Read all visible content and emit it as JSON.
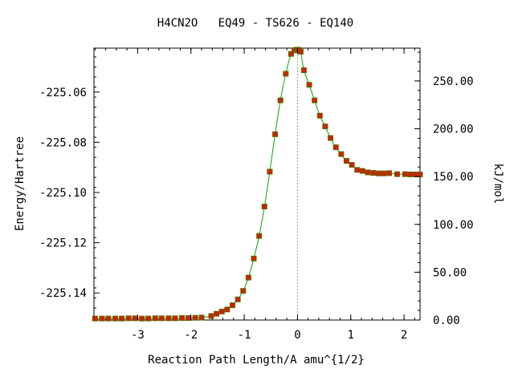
{
  "chart_data": {
    "type": "line",
    "title": "H4CN2O   EQ49 - TS626 - EQ140",
    "xlabel": "Reaction Path Length/A amu^{1/2}",
    "ylabel": "Energy/Hartree",
    "y2label": "kJ/mol",
    "xlim": [
      -3.82,
      2.3
    ],
    "ylim": [
      -225.1508,
      -225.0425
    ],
    "y2lim": [
      0,
      284.3
    ],
    "grid": false,
    "legend": "none",
    "x_ticks": [
      {
        "value": -3,
        "label": "-3"
      },
      {
        "value": -2,
        "label": "-2"
      },
      {
        "value": -1,
        "label": "-1"
      },
      {
        "value": 0,
        "label": "0"
      },
      {
        "value": 1,
        "label": "1"
      },
      {
        "value": 2,
        "label": "2"
      }
    ],
    "y_ticks": [
      {
        "value": -225.06,
        "label": "-225.06"
      },
      {
        "value": -225.08,
        "label": "-225.08"
      },
      {
        "value": -225.1,
        "label": "-225.10"
      },
      {
        "value": -225.12,
        "label": "-225.12"
      },
      {
        "value": -225.14,
        "label": "-225.14"
      }
    ],
    "y2_ticks": [
      {
        "value": 0,
        "label": "0.00"
      },
      {
        "value": 50,
        "label": "50.00"
      },
      {
        "value": 100,
        "label": "100.00"
      },
      {
        "value": 150,
        "label": "150.00"
      },
      {
        "value": 200,
        "label": "200.00"
      },
      {
        "value": 250,
        "label": "250.00"
      }
    ],
    "ts_marker_x": 0.0,
    "colors": {
      "curve": "#00aa00",
      "marker_fill": "#cc2200",
      "marker_edge": "#666600",
      "ts_line": "#999999",
      "axes": "#000000"
    },
    "series": [
      {
        "x": [
          -3.8,
          -3.67,
          -3.55,
          -3.42,
          -3.3,
          -3.17,
          -3.05,
          -2.92,
          -2.8,
          -2.67,
          -2.55,
          -2.42,
          -2.3,
          -2.17,
          -2.05,
          -1.92,
          -1.8,
          -1.62,
          -1.52,
          -1.42,
          -1.32,
          -1.22,
          -1.12,
          -1.02,
          -0.92,
          -0.82,
          -0.72,
          -0.62,
          -0.52,
          -0.42,
          -0.32,
          -0.22,
          -0.12,
          -0.06,
          -0.03,
          0.0,
          0.03,
          0.06,
          0.12,
          0.22,
          0.32,
          0.42,
          0.52,
          0.62,
          0.72,
          0.82,
          0.92,
          1.02,
          1.12,
          1.22,
          1.32,
          1.42,
          1.52,
          1.62,
          1.72,
          1.87,
          2.02,
          2.12,
          2.22,
          2.3
        ],
        "y": [
          -225.1502,
          -225.1502,
          -225.1502,
          -225.1502,
          -225.1502,
          -225.1501,
          -225.1501,
          -225.1502,
          -225.1502,
          -225.1501,
          -225.1501,
          -225.1501,
          -225.1501,
          -225.15,
          -225.15,
          -225.1499,
          -225.1498,
          -225.1492,
          -225.1483,
          -225.1474,
          -225.1466,
          -225.1449,
          -225.1426,
          -225.1392,
          -225.1339,
          -225.1263,
          -225.1173,
          -225.1056,
          -225.0917,
          -225.0768,
          -225.0633,
          -225.0527,
          -225.0448,
          -225.0434,
          -225.0432,
          -225.0431,
          -225.0433,
          -225.0439,
          -225.0513,
          -225.0571,
          -225.0633,
          -225.0694,
          -225.0737,
          -225.0783,
          -225.082,
          -225.0847,
          -225.0874,
          -225.089,
          -225.091,
          -225.0914,
          -225.092,
          -225.0922,
          -225.0924,
          -225.0924,
          -225.0923,
          -225.0927,
          -225.0927,
          -225.0928,
          -225.0928,
          -225.0928
        ]
      }
    ]
  }
}
